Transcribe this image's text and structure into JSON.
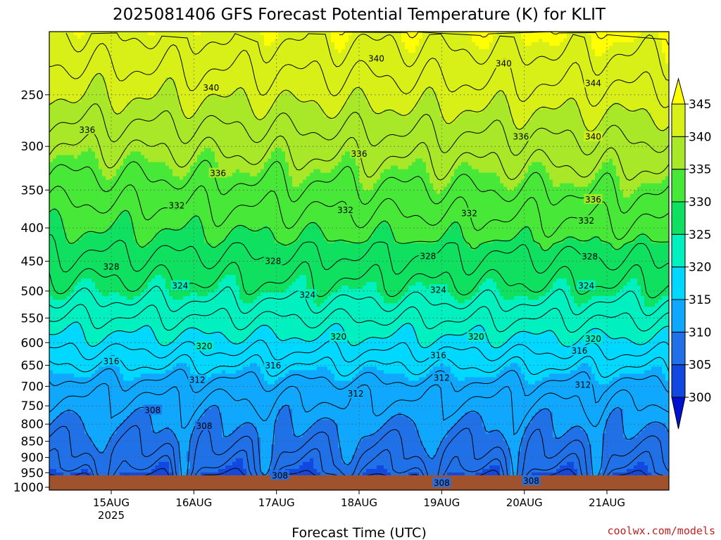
{
  "chart_data": {
    "type": "contour",
    "title": "2025081406 GFS Forecast Potential Temperature (K) for KLIT",
    "xlabel": "Forecast Time (UTC)",
    "ylabel": "",
    "credit": "coolwx.com/models",
    "x_range": [
      "2025-08-14T06:00Z",
      "2025-08-21T18:00Z"
    ],
    "x_ticks": [
      {
        "time": "2025-08-15T00:00Z",
        "label": "15AUG",
        "sublabel": "2025"
      },
      {
        "time": "2025-08-16T00:00Z",
        "label": "16AUG",
        "sublabel": ""
      },
      {
        "time": "2025-08-17T00:00Z",
        "label": "17AUG",
        "sublabel": ""
      },
      {
        "time": "2025-08-18T00:00Z",
        "label": "18AUG",
        "sublabel": ""
      },
      {
        "time": "2025-08-19T00:00Z",
        "label": "19AUG",
        "sublabel": ""
      },
      {
        "time": "2025-08-20T00:00Z",
        "label": "20AUG",
        "sublabel": ""
      },
      {
        "time": "2025-08-21T00:00Z",
        "label": "21AUG",
        "sublabel": ""
      }
    ],
    "y_axis": {
      "unit": "hPa",
      "scale": "log",
      "range": [
        1010,
        200
      ],
      "ticks": [
        250,
        300,
        350,
        400,
        450,
        500,
        550,
        600,
        650,
        700,
        750,
        800,
        850,
        900,
        950,
        1000
      ]
    },
    "grid": true,
    "colorbar": {
      "levels": [
        300,
        305,
        310,
        315,
        320,
        325,
        330,
        335,
        340,
        345
      ],
      "colors": [
        "#0010d0",
        "#1048e0",
        "#2070e8",
        "#10a8ff",
        "#00d8ff",
        "#00f0c0",
        "#10e060",
        "#48e838",
        "#a8e828",
        "#d8f018",
        "#ffff00"
      ],
      "labels": [
        "300",
        "305",
        "310",
        "315",
        "320",
        "325",
        "330",
        "335",
        "340",
        "345"
      ]
    },
    "ground_color": "#a0522d",
    "contour_interval": 2,
    "profile": [
      {
        "p": 1000,
        "theta": 302
      },
      {
        "p": 950,
        "theta": 305
      },
      {
        "p": 850,
        "theta": 308
      },
      {
        "p": 700,
        "theta": 313
      },
      {
        "p": 600,
        "theta": 319
      },
      {
        "p": 500,
        "theta": 325
      },
      {
        "p": 400,
        "theta": 330
      },
      {
        "p": 300,
        "theta": 336
      },
      {
        "p": 250,
        "theta": 340
      },
      {
        "p": 200,
        "theta": 344
      }
    ],
    "contour_labels": [
      {
        "time": "2025-08-14T17:00Z",
        "p": 283,
        "text": "336"
      },
      {
        "time": "2025-08-15T00:00Z",
        "p": 459,
        "text": "328"
      },
      {
        "time": "2025-08-15T00:00Z",
        "p": 641,
        "text": "316"
      },
      {
        "time": "2025-08-15T12:00Z",
        "p": 762,
        "text": "308"
      },
      {
        "time": "2025-08-15T19:00Z",
        "p": 370,
        "text": "332"
      },
      {
        "time": "2025-08-15T20:00Z",
        "p": 491,
        "text": "324"
      },
      {
        "time": "2025-08-16T01:00Z",
        "p": 685,
        "text": "312"
      },
      {
        "time": "2025-08-16T03:00Z",
        "p": 608,
        "text": "320"
      },
      {
        "time": "2025-08-16T03:00Z",
        "p": 806,
        "text": "308"
      },
      {
        "time": "2025-08-16T05:00Z",
        "p": 244,
        "text": "340"
      },
      {
        "time": "2025-08-16T07:00Z",
        "p": 330,
        "text": "336"
      },
      {
        "time": "2025-08-16T23:00Z",
        "p": 450,
        "text": "328"
      },
      {
        "time": "2025-08-16T23:00Z",
        "p": 651,
        "text": "316"
      },
      {
        "time": "2025-08-17T01:00Z",
        "p": 960,
        "text": "308"
      },
      {
        "time": "2025-08-17T09:00Z",
        "p": 507,
        "text": "324"
      },
      {
        "time": "2025-08-17T18:00Z",
        "p": 588,
        "text": "320"
      },
      {
        "time": "2025-08-17T20:00Z",
        "p": 376,
        "text": "332"
      },
      {
        "time": "2025-08-17T23:00Z",
        "p": 719,
        "text": "312"
      },
      {
        "time": "2025-08-18T00:00Z",
        "p": 308,
        "text": "336"
      },
      {
        "time": "2025-08-18T05:00Z",
        "p": 220,
        "text": "340"
      },
      {
        "time": "2025-08-18T20:00Z",
        "p": 442,
        "text": "328"
      },
      {
        "time": "2025-08-18T23:00Z",
        "p": 498,
        "text": "324"
      },
      {
        "time": "2025-08-18T23:00Z",
        "p": 628,
        "text": "316"
      },
      {
        "time": "2025-08-19T00:00Z",
        "p": 680,
        "text": "312"
      },
      {
        "time": "2025-08-19T00:00Z",
        "p": 985,
        "text": "308"
      },
      {
        "time": "2025-08-19T08:00Z",
        "p": 380,
        "text": "332"
      },
      {
        "time": "2025-08-19T10:00Z",
        "p": 588,
        "text": "320"
      },
      {
        "time": "2025-08-19T18:00Z",
        "p": 224,
        "text": "340"
      },
      {
        "time": "2025-08-19T23:00Z",
        "p": 290,
        "text": "336"
      },
      {
        "time": "2025-08-20T02:00Z",
        "p": 978,
        "text": "308"
      },
      {
        "time": "2025-08-20T16:00Z",
        "p": 618,
        "text": "316"
      },
      {
        "time": "2025-08-20T17:00Z",
        "p": 697,
        "text": "312"
      },
      {
        "time": "2025-08-20T18:00Z",
        "p": 390,
        "text": "332"
      },
      {
        "time": "2025-08-20T18:00Z",
        "p": 491,
        "text": "324"
      },
      {
        "time": "2025-08-20T19:00Z",
        "p": 443,
        "text": "328"
      },
      {
        "time": "2025-08-20T20:00Z",
        "p": 290,
        "text": "340"
      },
      {
        "time": "2025-08-20T20:00Z",
        "p": 240,
        "text": "344"
      },
      {
        "time": "2025-08-20T20:00Z",
        "p": 362,
        "text": "336"
      },
      {
        "time": "2025-08-20T20:00Z",
        "p": 592,
        "text": "320"
      }
    ]
  }
}
